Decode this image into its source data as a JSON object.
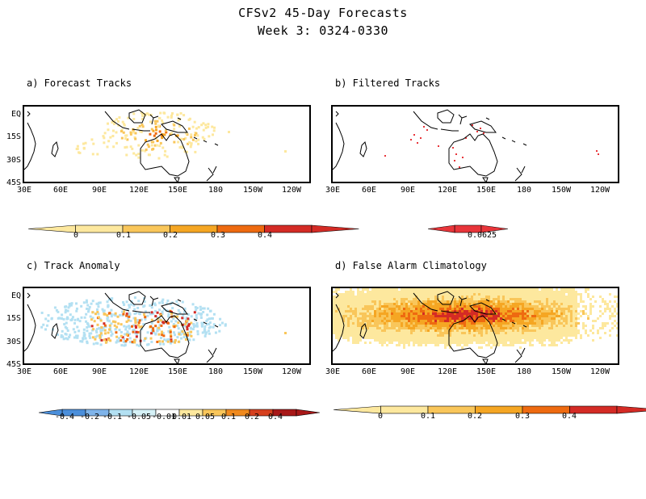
{
  "figure": {
    "title_line1": "CFSv2 45-Day Forecasts",
    "title_line2": "Week 3: 0324-0330"
  },
  "axes": {
    "lat_labels": [
      "EQ",
      "15S",
      "30S",
      "45S"
    ],
    "lon_labels": [
      "30E",
      "60E",
      "90E",
      "120E",
      "150E",
      "180",
      "150W",
      "120W"
    ]
  },
  "panels": [
    {
      "id": "a",
      "title": "a) Forecast Tracks",
      "scale": [
        {
          "label": "",
          "color": "#ffffff"
        },
        {
          "label": "0",
          "color": "#fde89e"
        },
        {
          "label": "0.1",
          "color": "#f9c65a"
        },
        {
          "label": "0.2",
          "color": "#f5a623"
        },
        {
          "label": "0.3",
          "color": "#ee6a10"
        },
        {
          "label": "0.4",
          "color": "#d42b25"
        }
      ],
      "colorbar_labels": [
        "0",
        "0.1",
        "0.2",
        "0.3",
        "0.4"
      ]
    },
    {
      "id": "b",
      "title": "b) Filtered Tracks",
      "scale": [
        {
          "label": "",
          "color": "#ffffff"
        },
        {
          "label": "0.0625",
          "color": "#e8353a"
        }
      ],
      "colorbar_labels": [
        "0.0625"
      ]
    },
    {
      "id": "c",
      "title": "c) Track Anomaly",
      "scale": [
        {
          "label": "",
          "color": "#2166cc"
        },
        {
          "label": "-0.4",
          "color": "#4b8fdb"
        },
        {
          "label": "-0.2",
          "color": "#7fb4ea"
        },
        {
          "label": "-0.1",
          "color": "#b3e0f2"
        },
        {
          "label": "-0.05",
          "color": "#d6f1f7"
        },
        {
          "label": "-0.01",
          "color": "#ffffff"
        },
        {
          "label": "0.01",
          "color": "#fde89e"
        },
        {
          "label": "0.05",
          "color": "#f9c65a"
        },
        {
          "label": "0.1",
          "color": "#f08a1e"
        },
        {
          "label": "0.2",
          "color": "#d6401e"
        },
        {
          "label": "0.4",
          "color": "#a81818"
        }
      ],
      "colorbar_labels": [
        "-0.4",
        "-0.2",
        "-0.1",
        "-0.05",
        "-0.01",
        "0.01",
        "0.05",
        "0.1",
        "0.2",
        "0.4"
      ]
    },
    {
      "id": "d",
      "title": "d) False Alarm Climatology",
      "scale": [
        {
          "label": "",
          "color": "#ffffff"
        },
        {
          "label": "0",
          "color": "#fde89e"
        },
        {
          "label": "0.1",
          "color": "#f9c65a"
        },
        {
          "label": "0.2",
          "color": "#f5a623"
        },
        {
          "label": "0.3",
          "color": "#ee6a10"
        },
        {
          "label": "0.4",
          "color": "#d42b25"
        }
      ],
      "colorbar_labels": [
        "0",
        "0.1",
        "0.2",
        "0.3",
        "0.4"
      ]
    }
  ],
  "colors": {
    "land_outline": "#000000",
    "yellow": "#fde89e",
    "light_orange": "#f9c65a",
    "orange": "#f5a623",
    "dark_orange": "#ee6a10",
    "red": "#d42b25",
    "light_blue": "#b3e0f2",
    "pink_red": "#e8353a"
  }
}
